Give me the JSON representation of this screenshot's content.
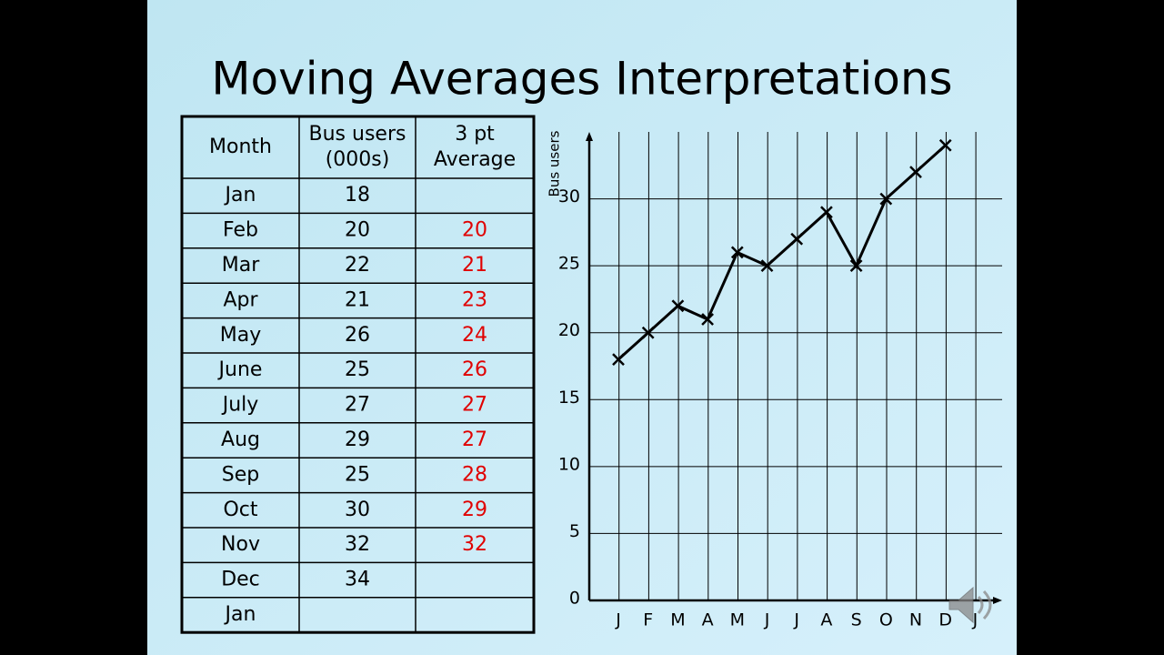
{
  "title": "Moving Averages Interpretations",
  "table": {
    "header": [
      "Month",
      "Bus users (000s)",
      "3 pt Average"
    ],
    "rows": [
      [
        "Jan",
        18,
        null
      ],
      [
        "Feb",
        20,
        20
      ],
      [
        "Mar",
        22,
        21
      ],
      [
        "Apr",
        21,
        23
      ],
      [
        "May",
        26,
        24
      ],
      [
        "June",
        25,
        26
      ],
      [
        "July",
        27,
        27
      ],
      [
        "Aug",
        29,
        27
      ],
      [
        "Sep",
        25,
        28
      ],
      [
        "Oct",
        30,
        29
      ],
      [
        "Nov",
        32,
        32
      ],
      [
        "Dec",
        34,
        null
      ],
      [
        "Jan",
        null,
        null
      ]
    ]
  },
  "chart_data": {
    "type": "line",
    "y_label": "Bus users",
    "categories": [
      "J",
      "F",
      "M",
      "A",
      "M",
      "J",
      "J",
      "A",
      "S",
      "O",
      "N",
      "D",
      "J"
    ],
    "values": [
      18,
      20,
      22,
      21,
      26,
      25,
      27,
      29,
      25,
      30,
      32,
      34,
      null
    ],
    "color": "#000000",
    "marker": "x",
    "ylim": [
      0,
      35
    ],
    "yticks": [
      0,
      5,
      10,
      15,
      20,
      25,
      30
    ],
    "grid": true
  }
}
